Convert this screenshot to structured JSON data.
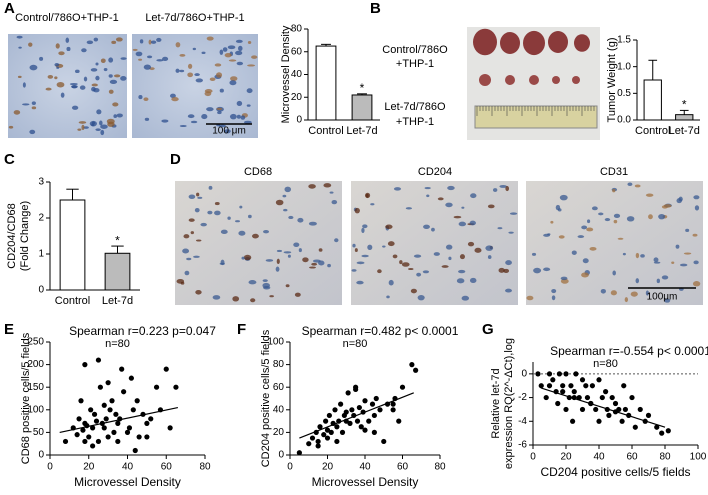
{
  "panel_letters": [
    "A",
    "B",
    "C",
    "D",
    "E",
    "F",
    "G"
  ],
  "micrographs": [
    {
      "label": "Control/786O+THP-1"
    },
    {
      "label": "Let-7d/786O+THP-1",
      "scale_bar": "100 μm"
    },
    {
      "label": "CD68"
    },
    {
      "label": "CD204"
    },
    {
      "label": "CD31",
      "scale_bar": "100μm"
    }
  ],
  "tumor_photo": {
    "groups": [
      [
        "Control/786O",
        "+THP-1"
      ],
      [
        "Let-7d/786O",
        "+THP-1"
      ]
    ]
  },
  "chart_data": [
    {
      "type": "bar",
      "y_label": [
        "Microvessel Density"
      ],
      "categories": [
        "Control",
        "Let-7d"
      ],
      "values": [
        65,
        22
      ],
      "errors": [
        1.5,
        1
      ],
      "colors": [
        "#ffffff",
        "#bbbbbb"
      ],
      "significance": "*",
      "ylim": [
        0,
        80
      ],
      "yticks": [
        0,
        20,
        40,
        60,
        80
      ]
    },
    {
      "type": "bar",
      "y_label": [
        "Tumor Weight (g)"
      ],
      "categories": [
        "Control",
        "Let-7d"
      ],
      "values": [
        0.75,
        0.1
      ],
      "errors": [
        0.37,
        0.08
      ],
      "colors": [
        "#ffffff",
        "#bbbbbb"
      ],
      "significance": "*",
      "ylim": [
        0,
        1.5
      ],
      "yticks": [
        {
          "value": 0,
          "label": "0.0"
        },
        0.5,
        {
          "value": 1,
          "label": "1.0"
        },
        1.5
      ]
    },
    {
      "type": "bar",
      "y_label": [
        "CD204/CD68",
        "(Fold Change)"
      ],
      "categories": [
        "Control",
        "Let-7d"
      ],
      "values": [
        2.5,
        1.02
      ],
      "errors": [
        0.3,
        0.2
      ],
      "colors": [
        "#ffffff",
        "#bbbbbb"
      ],
      "significance": "*",
      "ylim": [
        0,
        3
      ],
      "yticks": [
        0,
        1,
        2,
        3
      ]
    },
    {
      "type": "scatter",
      "title": "Spearman r=0.223  p=0.047",
      "subtitle": "n=80",
      "x_label": "Microvessel Density",
      "y_label": [
        "CD68 positive cells/5 fields"
      ],
      "x": [
        8,
        12,
        14,
        15,
        16,
        17,
        18,
        18,
        19,
        20,
        21,
        22,
        23,
        24,
        25,
        26,
        27,
        28,
        28,
        29,
        30,
        31,
        32,
        33,
        34,
        35,
        36,
        37,
        38,
        40,
        41,
        42,
        43,
        45,
        46,
        48,
        50,
        52,
        55,
        57,
        60,
        62,
        65,
        18,
        22,
        30,
        35,
        44,
        50,
        25
      ],
      "y": [
        30,
        60,
        45,
        80,
        120,
        55,
        200,
        70,
        65,
        40,
        100,
        60,
        90,
        75,
        30,
        150,
        70,
        60,
        110,
        80,
        160,
        100,
        120,
        50,
        90,
        70,
        80,
        190,
        140,
        50,
        60,
        170,
        100,
        120,
        40,
        90,
        70,
        80,
        150,
        100,
        190,
        60,
        150,
        30,
        20,
        40,
        30,
        10,
        40,
        210
      ],
      "fit": {
        "x": [
          5,
          66
        ],
        "y": [
          50,
          105
        ]
      },
      "color": "#000000",
      "xlim": [
        0,
        80
      ],
      "xticks": [
        0,
        20,
        40,
        60,
        80
      ],
      "ylim": [
        0,
        250
      ],
      "yticks": [
        0,
        50,
        100,
        150,
        200,
        250
      ]
    },
    {
      "type": "scatter",
      "title": "Spearman r=0.482   p< 0.0001",
      "subtitle": "n=80",
      "x_label": "Microvessel Density",
      "y_label": [
        "CD204 positive cells/5 fields"
      ],
      "x": [
        5,
        10,
        12,
        14,
        15,
        16,
        18,
        19,
        20,
        21,
        22,
        23,
        24,
        25,
        26,
        27,
        28,
        29,
        30,
        31,
        32,
        33,
        34,
        35,
        36,
        37,
        38,
        39,
        40,
        42,
        44,
        45,
        46,
        48,
        50,
        52,
        55,
        56,
        58,
        60,
        65,
        67,
        15,
        20,
        25,
        30,
        35,
        40,
        45,
        55
      ],
      "y": [
        2,
        10,
        15,
        20,
        12,
        25,
        18,
        30,
        22,
        35,
        20,
        28,
        40,
        25,
        30,
        45,
        20,
        35,
        30,
        55,
        28,
        40,
        35,
        60,
        30,
        42,
        25,
        38,
        48,
        30,
        45,
        20,
        50,
        40,
        12,
        45,
        40,
        50,
        30,
        60,
        80,
        75,
        8,
        15,
        12,
        38,
        58,
        22,
        35,
        45
      ],
      "fit": {
        "x": [
          5,
          66
        ],
        "y": [
          15,
          55
        ]
      },
      "color": "#000000",
      "xlim": [
        0,
        80
      ],
      "xticks": [
        0,
        20,
        40,
        60,
        80
      ],
      "ylim": [
        0,
        100
      ],
      "yticks": [
        0,
        20,
        40,
        60,
        80,
        100
      ]
    },
    {
      "type": "scatter",
      "title": "Spearman r=-0.554   p< 0.0001",
      "subtitle": "n=80",
      "x_label": "CD204 positive cells/5 fields",
      "y_label": [
        "Relative let-7d",
        "expression RQ(2^-ΔCt),log"
      ],
      "x": [
        3,
        5,
        8,
        10,
        12,
        14,
        15,
        16,
        18,
        20,
        20,
        22,
        23,
        24,
        25,
        26,
        28,
        30,
        30,
        32,
        33,
        35,
        36,
        38,
        40,
        40,
        42,
        44,
        45,
        46,
        48,
        50,
        52,
        54,
        55,
        56,
        58,
        60,
        62,
        65,
        68,
        70,
        75,
        78,
        82,
        10,
        18,
        25,
        35,
        50
      ],
      "y": [
        0,
        -1,
        -2,
        0,
        -0.5,
        -1.5,
        -2.5,
        0,
        -1,
        -3,
        0,
        -2,
        -1,
        -4,
        -1.5,
        0,
        -2,
        -3,
        -0.5,
        -1,
        -2,
        -2.5,
        -1,
        -3,
        -0.5,
        -4,
        -2,
        -1.5,
        -3,
        -3.5,
        -2,
        -2.5,
        -3,
        -4,
        -1,
        -3,
        -3.5,
        -2,
        -4.5,
        -3,
        -4,
        -3.5,
        -4.5,
        -5,
        -4.8,
        -1,
        -1.5,
        -2,
        -2.5,
        -3.2
      ],
      "fit": {
        "x": [
          5,
          80
        ],
        "y": [
          -1.2,
          -4.5
        ]
      },
      "color": "#000000",
      "reference_line": 0,
      "xlim": [
        0,
        100
      ],
      "xticks": [
        0,
        20,
        40,
        60,
        80,
        100
      ],
      "ylim": [
        -6,
        1
      ],
      "yticks": [
        -6,
        -4,
        -2,
        0
      ]
    }
  ]
}
